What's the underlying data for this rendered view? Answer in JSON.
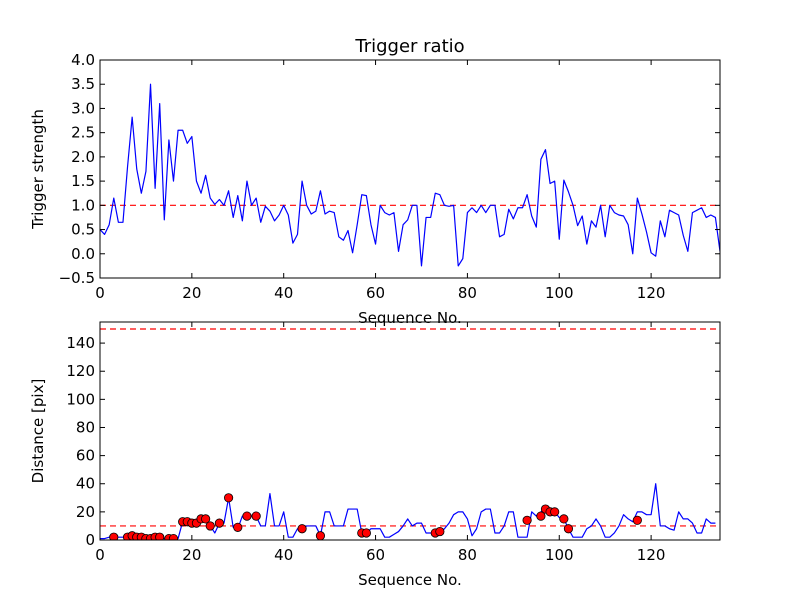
{
  "chart_data": [
    {
      "type": "line",
      "title": "Trigger ratio",
      "xlabel": "Sequence No.",
      "ylabel": "Trigger strength",
      "xlim": [
        0,
        135
      ],
      "ylim": [
        -0.5,
        4.0
      ],
      "xticks": [
        0,
        20,
        40,
        60,
        80,
        100,
        120
      ],
      "yticks": [
        -0.5,
        0.0,
        0.5,
        1.0,
        1.5,
        2.0,
        2.5,
        3.0,
        3.5,
        4.0
      ],
      "xtick_labels": [
        "0",
        "20",
        "40",
        "60",
        "80",
        "100",
        "120"
      ],
      "ytick_labels": [
        "−0.5",
        "0.0",
        "0.5",
        "1.0",
        "1.5",
        "2.0",
        "2.5",
        "3.0",
        "3.5",
        "4.0"
      ],
      "grid": false,
      "series_color": "#0000ff",
      "threshold_color": "#ff0000",
      "thresholds": [
        1.0
      ],
      "series": [
        {
          "values": [
            0.5,
            0.4,
            0.6,
            1.15,
            0.65,
            0.65,
            1.8,
            2.82,
            1.75,
            1.25,
            1.7,
            3.5,
            1.35,
            3.1,
            0.7,
            2.35,
            1.5,
            2.55,
            2.55,
            2.28,
            2.42,
            1.5,
            1.25,
            1.62,
            1.15,
            1.02,
            1.12,
            1.0,
            1.3,
            0.75,
            1.2,
            0.68,
            1.5,
            1.0,
            1.15,
            0.65,
            0.98,
            0.88,
            0.68,
            0.8,
            1.0,
            0.8,
            0.22,
            0.4,
            1.5,
            1.0,
            0.82,
            0.88,
            1.3,
            0.82,
            0.88,
            0.85,
            0.35,
            0.28,
            0.48,
            0.02,
            0.6,
            1.22,
            1.2,
            0.6,
            0.2,
            1.0,
            0.85,
            0.8,
            0.85,
            0.05,
            0.6,
            0.7,
            1.0,
            1.0,
            -0.25,
            0.75,
            0.75,
            1.25,
            1.22,
            1.0,
            0.98,
            1.0,
            -0.25,
            -0.1,
            0.85,
            0.95,
            0.85,
            1.0,
            0.85,
            1.0,
            1.0,
            0.35,
            0.4,
            0.92,
            0.72,
            0.95,
            0.95,
            1.22,
            0.78,
            0.55,
            1.95,
            2.15,
            1.45,
            1.5,
            0.3,
            1.52,
            1.28,
            1.0,
            0.58,
            0.78,
            0.2,
            0.68,
            0.55,
            1.0,
            0.35,
            1.0,
            0.85,
            0.8,
            0.78,
            0.6,
            0.0,
            1.15,
            0.82,
            0.45,
            0.02,
            -0.05,
            0.68,
            0.35,
            0.9,
            0.85,
            0.8,
            0.38,
            0.05,
            0.85,
            0.9,
            0.95,
            0.75,
            0.8,
            0.75,
            0.05
          ]
        }
      ]
    },
    {
      "type": "line",
      "title": "",
      "xlabel": "Sequence No.",
      "ylabel": "Distance [pix]",
      "xlim": [
        0,
        135
      ],
      "ylim": [
        0,
        155
      ],
      "xticks": [
        0,
        20,
        40,
        60,
        80,
        100,
        120
      ],
      "yticks": [
        0,
        20,
        40,
        60,
        80,
        100,
        120,
        140
      ],
      "xtick_labels": [
        "0",
        "20",
        "40",
        "60",
        "80",
        "100",
        "120"
      ],
      "ytick_labels": [
        "0",
        "20",
        "40",
        "60",
        "80",
        "100",
        "120",
        "140"
      ],
      "grid": false,
      "series_color": "#0000ff",
      "marker_color": "#ff0000",
      "threshold_color": "#ff0000",
      "thresholds": [
        10,
        150
      ],
      "series": [
        {
          "values": [
            1,
            1,
            2,
            2,
            2,
            2,
            3,
            3,
            2,
            2,
            2,
            2,
            2,
            2,
            1,
            1,
            1,
            1,
            13,
            13,
            12,
            12,
            15,
            15,
            10,
            5,
            12,
            12,
            30,
            9,
            8,
            17,
            17,
            17,
            17,
            10,
            10,
            33,
            10,
            10,
            20,
            2,
            2,
            8,
            8,
            10,
            10,
            10,
            3,
            20,
            20,
            10,
            10,
            10,
            22,
            22,
            22,
            5,
            5,
            8,
            8,
            8,
            2,
            2,
            4,
            6,
            10,
            15,
            10,
            12,
            12,
            5,
            5,
            5,
            5,
            8,
            12,
            18,
            20,
            20,
            15,
            3,
            8,
            20,
            22,
            22,
            5,
            5,
            10,
            20,
            20,
            2,
            2,
            2,
            20,
            17,
            20,
            22,
            20,
            20,
            16,
            15,
            8,
            2,
            2,
            2,
            8,
            10,
            15,
            10,
            2,
            2,
            5,
            10,
            18,
            15,
            13,
            20,
            20,
            18,
            18,
            40,
            10,
            10,
            8,
            7,
            20,
            15,
            15,
            12,
            5,
            5,
            15,
            12,
            12
          ],
          "markers": [
            [
              3,
              2
            ],
            [
              6,
              2
            ],
            [
              7,
              3
            ],
            [
              8,
              2
            ],
            [
              9,
              2
            ],
            [
              10,
              1
            ],
            [
              11,
              1
            ],
            [
              12,
              2
            ],
            [
              13,
              2
            ],
            [
              15,
              1
            ],
            [
              16,
              1
            ],
            [
              18,
              13
            ],
            [
              19,
              13
            ],
            [
              20,
              12
            ],
            [
              21,
              12
            ],
            [
              22,
              15
            ],
            [
              23,
              15
            ],
            [
              24,
              10
            ],
            [
              26,
              12
            ],
            [
              28,
              30
            ],
            [
              30,
              9
            ],
            [
              32,
              17
            ],
            [
              34,
              17
            ],
            [
              44,
              8
            ],
            [
              48,
              3
            ],
            [
              57,
              5
            ],
            [
              58,
              5
            ],
            [
              73,
              5
            ],
            [
              74,
              6
            ],
            [
              93,
              14
            ],
            [
              96,
              17
            ],
            [
              97,
              22
            ],
            [
              98,
              20
            ],
            [
              99,
              20
            ],
            [
              101,
              15
            ],
            [
              102,
              8
            ],
            [
              117,
              14
            ]
          ]
        }
      ]
    }
  ]
}
